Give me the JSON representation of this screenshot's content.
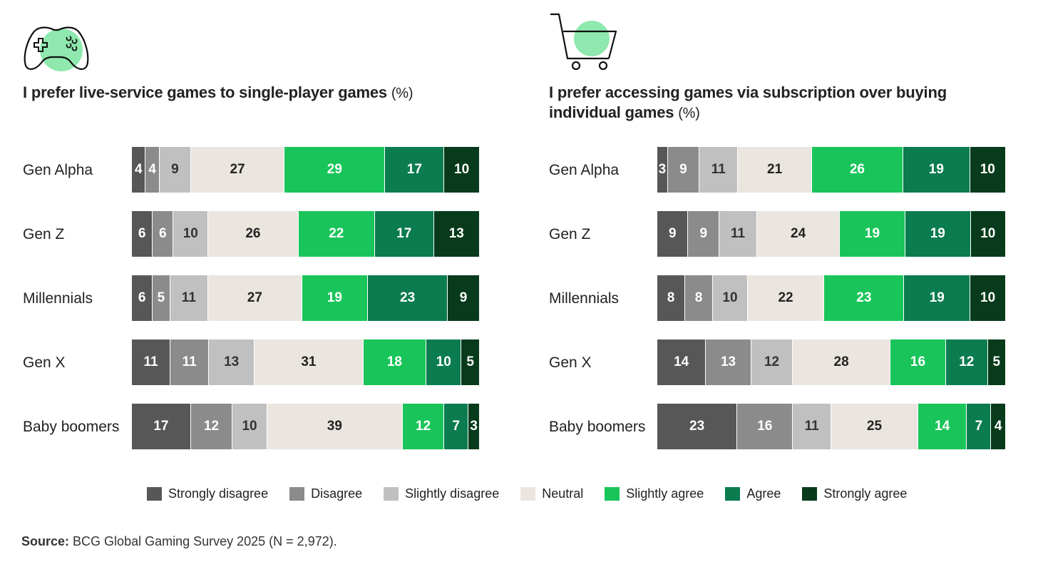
{
  "colors": {
    "strongly_disagree": "#575757",
    "disagree": "#8b8b8b",
    "slightly_disagree": "#c0c0c0",
    "neutral": "#ebe5df",
    "slightly_agree": "#19c55a",
    "agree": "#0a7c4f",
    "strongly_agree": "#073b1b",
    "icon_fill": "#8fe8ae"
  },
  "legend": [
    {
      "key": "strongly_disagree",
      "label": "Strongly disagree"
    },
    {
      "key": "disagree",
      "label": "Disagree"
    },
    {
      "key": "slightly_disagree",
      "label": "Slightly disagree"
    },
    {
      "key": "neutral",
      "label": "Neutral"
    },
    {
      "key": "slightly_agree",
      "label": "Slightly agree"
    },
    {
      "key": "agree",
      "label": "Agree"
    },
    {
      "key": "strongly_agree",
      "label": "Strongly agree"
    }
  ],
  "chart_data": [
    {
      "type": "bar",
      "orientation": "horizontal-stacked",
      "title": "I prefer live-service games to single-player games",
      "unit": "(%)",
      "icon": "game-controller-icon",
      "categories": [
        "Gen Alpha",
        "Gen Z",
        "Millennials",
        "Gen X",
        "Baby boomers"
      ],
      "series": [
        {
          "name": "Strongly disagree",
          "values": [
            4,
            6,
            6,
            11,
            17
          ]
        },
        {
          "name": "Disagree",
          "values": [
            4,
            6,
            5,
            11,
            12
          ]
        },
        {
          "name": "Slightly disagree",
          "values": [
            9,
            10,
            11,
            13,
            10
          ]
        },
        {
          "name": "Neutral",
          "values": [
            27,
            26,
            27,
            31,
            39
          ]
        },
        {
          "name": "Slightly agree",
          "values": [
            29,
            22,
            19,
            18,
            12
          ]
        },
        {
          "name": "Agree",
          "values": [
            17,
            17,
            23,
            10,
            7
          ]
        },
        {
          "name": "Strongly agree",
          "values": [
            10,
            13,
            9,
            5,
            3
          ]
        }
      ]
    },
    {
      "type": "bar",
      "orientation": "horizontal-stacked",
      "title": "I prefer accessing games via subscription over buying individual games",
      "unit": "(%)",
      "icon": "shopping-cart-icon",
      "categories": [
        "Gen Alpha",
        "Gen Z",
        "Millennials",
        "Gen X",
        "Baby boomers"
      ],
      "series": [
        {
          "name": "Strongly disagree",
          "values": [
            3,
            9,
            8,
            14,
            23
          ]
        },
        {
          "name": "Disagree",
          "values": [
            9,
            9,
            8,
            13,
            16
          ]
        },
        {
          "name": "Slightly disagree",
          "values": [
            11,
            11,
            10,
            12,
            11
          ]
        },
        {
          "name": "Neutral",
          "values": [
            21,
            24,
            22,
            28,
            25
          ]
        },
        {
          "name": "Slightly agree",
          "values": [
            26,
            19,
            23,
            16,
            14
          ]
        },
        {
          "name": "Agree",
          "values": [
            19,
            19,
            19,
            12,
            7
          ]
        },
        {
          "name": "Strongly agree",
          "values": [
            10,
            10,
            10,
            5,
            4
          ]
        }
      ]
    }
  ],
  "source": {
    "label": "Source:",
    "text": "BCG Global Gaming Survey 2025 (N = 2,972)."
  }
}
